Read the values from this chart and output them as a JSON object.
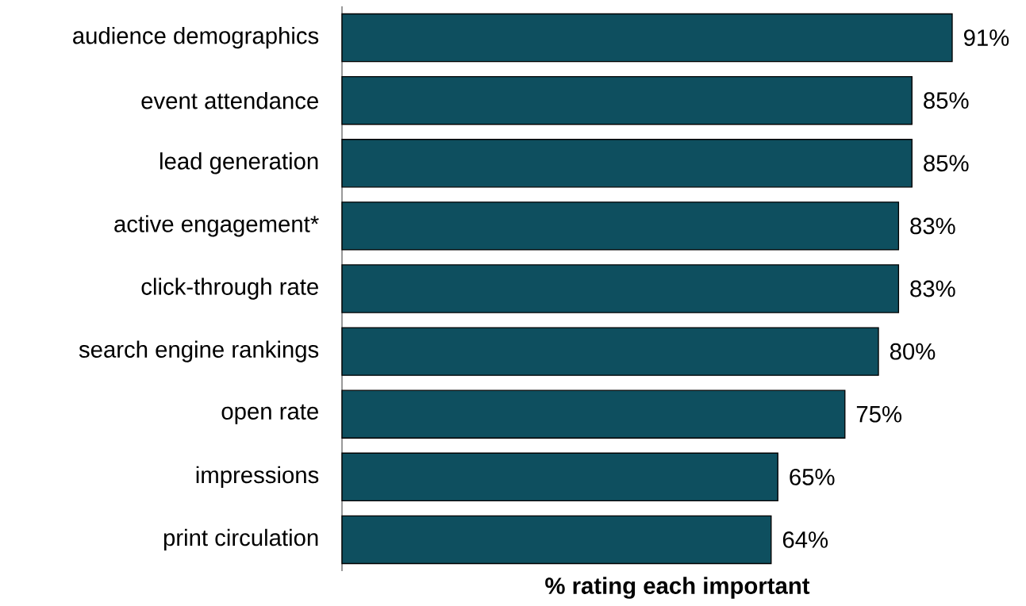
{
  "chart_data": {
    "type": "bar",
    "orientation": "horizontal",
    "xlabel": "% rating each important",
    "categories": [
      "audience demographics",
      "event attendance",
      "lead generation",
      "active engagement*",
      "click-through rate",
      "search engine rankings",
      "open rate",
      "impressions",
      "print circulation"
    ],
    "values": [
      91,
      85,
      85,
      83,
      83,
      80,
      75,
      65,
      64
    ],
    "value_labels": [
      "91%",
      "85%",
      "85%",
      "83%",
      "83%",
      "80%",
      "75%",
      "65%",
      "64%"
    ],
    "color": "#0e4f5f"
  }
}
